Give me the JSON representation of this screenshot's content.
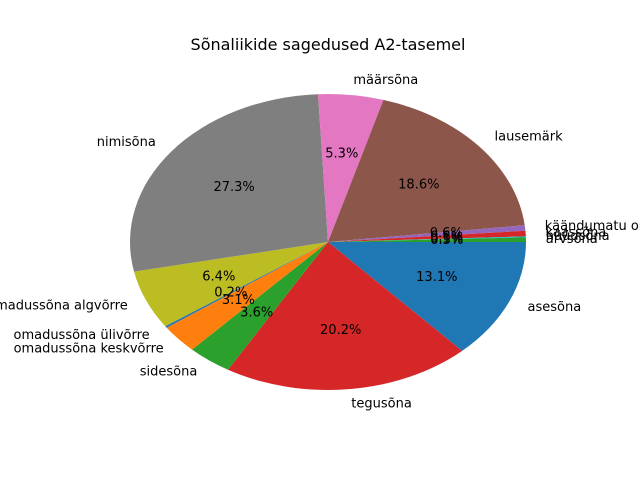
{
  "chart_data": {
    "type": "pie",
    "title": "Sõnaliikide sagedused A2-tasemel",
    "legend": "none",
    "slices": [
      {
        "label": "asesõna",
        "value": 13.1,
        "pct_label": "13.1%",
        "color": "#1f77b4"
      },
      {
        "label": "tegusõna",
        "value": 20.2,
        "pct_label": "20.2%",
        "color": "#d62728"
      },
      {
        "label": "sidesõna",
        "value": 3.6,
        "pct_label": "3.6%",
        "color": "#2ca02c"
      },
      {
        "label": "omadussõna keskvõrre",
        "value": 3.1,
        "pct_label": "3.1%",
        "color": "#ff7f0e"
      },
      {
        "label": "omadussõna ülivõrre",
        "value": 0.2,
        "pct_label": "0.2%",
        "color": "#1f77b4"
      },
      {
        "label": "omadussõna algvõrre",
        "value": 6.4,
        "pct_label": "6.4%",
        "color": "#bcbd22"
      },
      {
        "label": "nimisõna",
        "value": 27.3,
        "pct_label": "27.3%",
        "color": "#7f7f7f"
      },
      {
        "label": "määrsõna",
        "value": 5.3,
        "pct_label": "5.3%",
        "color": "#e377c2"
      },
      {
        "label": "lausemärk",
        "value": 18.6,
        "pct_label": "18.6%",
        "color": "#8c564b"
      },
      {
        "label": "käändumatu omadussõna",
        "value": 0.6,
        "pct_label": "0.6%",
        "color": "#9467bd"
      },
      {
        "label": "kaassõna",
        "value": 0.6,
        "pct_label": "0.6%",
        "color": "#d62728"
      },
      {
        "label": "hüüdsõna",
        "value": 0.1,
        "pct_label": "0.1%",
        "color": "#17becf"
      },
      {
        "label": "arvsõna",
        "value": 0.5,
        "pct_label": "0.5%",
        "color": "#2ca02c"
      }
    ]
  }
}
